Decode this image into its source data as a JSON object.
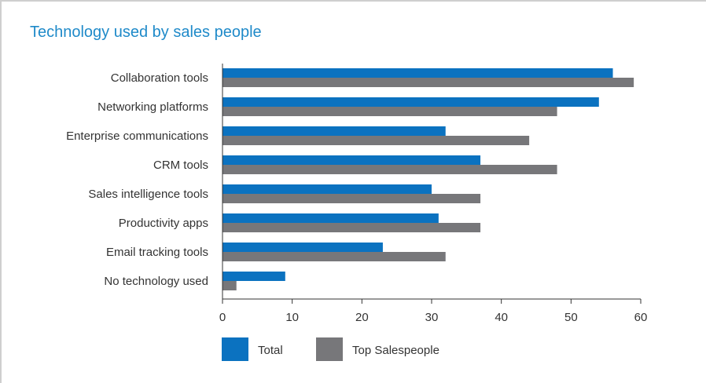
{
  "chart_data": {
    "type": "bar",
    "orientation": "horizontal",
    "title": "Technology used by sales people",
    "categories": [
      "Collaboration tools",
      "Networking platforms",
      "Enterprise communications",
      "CRM tools",
      "Sales intelligence tools",
      "Productivity apps",
      "Email tracking tools",
      "No technology used"
    ],
    "series": [
      {
        "name": "Total",
        "color": "#0b72c0",
        "values": [
          56,
          54,
          32,
          37,
          30,
          31,
          23,
          9
        ]
      },
      {
        "name": "Top Salespeople",
        "color": "#77777a",
        "values": [
          59,
          48,
          44,
          48,
          37,
          37,
          32,
          2
        ]
      }
    ],
    "xlim": [
      0,
      60
    ],
    "xticks": [
      0,
      10,
      20,
      30,
      40,
      50,
      60
    ],
    "grid": false,
    "legend": "bottom-left"
  }
}
